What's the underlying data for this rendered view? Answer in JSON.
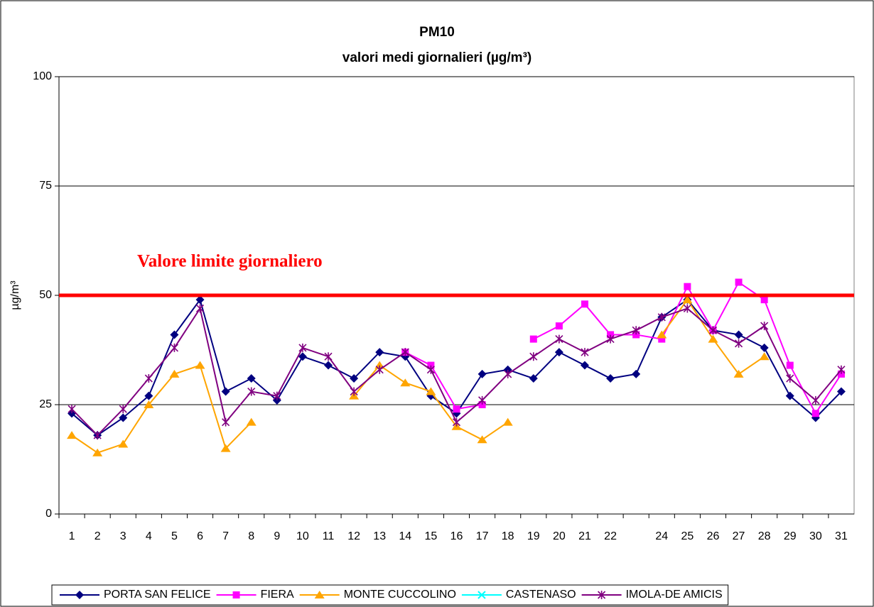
{
  "chart_data": {
    "type": "line",
    "title": "PM10",
    "subtitle": "valori medi giornalieri (µg/m³)",
    "y_label": "µg/m³",
    "categories": [
      "1",
      "2",
      "3",
      "4",
      "5",
      "6",
      "7",
      "8",
      "9",
      "10",
      "11",
      "12",
      "13",
      "14",
      "15",
      "16",
      "17",
      "18",
      "19",
      "20",
      "21",
      "22",
      null,
      "24",
      "25",
      "26",
      "27",
      "28",
      "29",
      "30",
      "31"
    ],
    "ylim": [
      0,
      100
    ],
    "yticks": [
      0,
      25,
      50,
      75,
      100
    ],
    "grid": true,
    "legend": "bottom",
    "limit": {
      "value": 50,
      "label": "Valore limite giornaliero",
      "color": "#ff0000"
    },
    "series": [
      {
        "name": "PORTA SAN FELICE",
        "color": "#000080",
        "marker": "diamond",
        "values": [
          23,
          18,
          22,
          27,
          41,
          49,
          28,
          31,
          26,
          36,
          34,
          31,
          37,
          36,
          27,
          23,
          32,
          33,
          31,
          37,
          34,
          31,
          32,
          45,
          49,
          42,
          41,
          38,
          27,
          22,
          28
        ]
      },
      {
        "name": "FIERA",
        "color": "#ff00ff",
        "marker": "square",
        "values": [
          null,
          null,
          null,
          null,
          null,
          null,
          null,
          null,
          null,
          null,
          null,
          null,
          null,
          37,
          34,
          24,
          25,
          null,
          40,
          43,
          48,
          41,
          41,
          40,
          52,
          42,
          53,
          49,
          34,
          23,
          32
        ]
      },
      {
        "name": "MONTE CUCCOLINO",
        "color": "#ffa500",
        "marker": "triangle",
        "values": [
          18,
          14,
          16,
          25,
          32,
          34,
          15,
          21,
          null,
          null,
          null,
          27,
          34,
          30,
          28,
          20,
          17,
          21,
          null,
          null,
          null,
          null,
          null,
          41,
          49,
          40,
          32,
          36,
          null,
          null,
          null
        ]
      },
      {
        "name": "CASTENASO",
        "color": "#00ffff",
        "marker": "x",
        "values": [
          null,
          null,
          null,
          null,
          null,
          null,
          null,
          null,
          null,
          null,
          null,
          null,
          null,
          null,
          null,
          null,
          null,
          null,
          null,
          null,
          null,
          null,
          null,
          null,
          null,
          null,
          null,
          null,
          null,
          null,
          null
        ]
      },
      {
        "name": "IMOLA-DE AMICIS",
        "color": "#800080",
        "marker": "star",
        "values": [
          24,
          18,
          24,
          31,
          38,
          47,
          21,
          28,
          27,
          38,
          36,
          28,
          33,
          37,
          33,
          21,
          26,
          32,
          36,
          40,
          37,
          40,
          42,
          45,
          47,
          42,
          39,
          43,
          31,
          26,
          33
        ]
      }
    ]
  }
}
